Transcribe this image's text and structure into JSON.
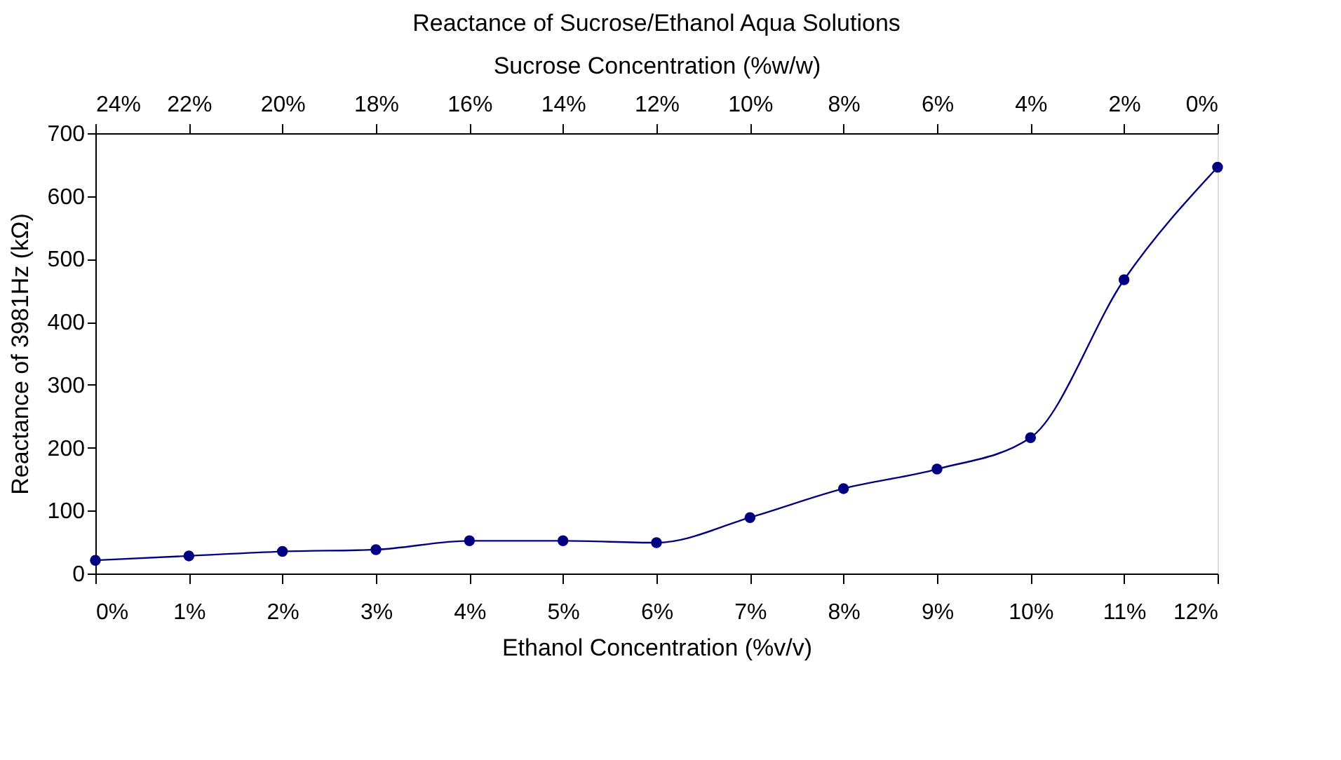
{
  "chart_data": {
    "type": "line",
    "title": "Reactance of Sucrose/Ethanol Aqua Solutions",
    "xlabel": "Ethanol Concentration (%v/v)",
    "ylabel": "Reactance of 3981Hz (kΩ)",
    "x2label": "Sucrose Concentration (%w/w)",
    "x": [
      0,
      1,
      2,
      3,
      4,
      5,
      6,
      7,
      8,
      9,
      10,
      11,
      12
    ],
    "series": [
      {
        "color": "#000080",
        "values": [
          21,
          28,
          35,
          38,
          52,
          52,
          49,
          89,
          135,
          166,
          216,
          467,
          646
        ]
      }
    ],
    "xlim": [
      0,
      12
    ],
    "xticks": [
      {
        "value": 0,
        "label": "0%"
      },
      {
        "value": 1,
        "label": "1%"
      },
      {
        "value": 2,
        "label": "2%"
      },
      {
        "value": 3,
        "label": "3%"
      },
      {
        "value": 4,
        "label": "4%"
      },
      {
        "value": 5,
        "label": "5%"
      },
      {
        "value": 6,
        "label": "6%"
      },
      {
        "value": 7,
        "label": "7%"
      },
      {
        "value": 8,
        "label": "8%"
      },
      {
        "value": 9,
        "label": "9%"
      },
      {
        "value": 10,
        "label": "10%"
      },
      {
        "value": 11,
        "label": "11%"
      },
      {
        "value": 12,
        "label": "12%"
      }
    ],
    "x2lim": [
      24,
      0
    ],
    "x2ticks": [
      {
        "value": 24,
        "label": "24%"
      },
      {
        "value": 22,
        "label": "22%"
      },
      {
        "value": 20,
        "label": "20%"
      },
      {
        "value": 18,
        "label": "18%"
      },
      {
        "value": 16,
        "label": "16%"
      },
      {
        "value": 14,
        "label": "14%"
      },
      {
        "value": 12,
        "label": "12%"
      },
      {
        "value": 10,
        "label": "10%"
      },
      {
        "value": 8,
        "label": "8%"
      },
      {
        "value": 6,
        "label": "6%"
      },
      {
        "value": 4,
        "label": "4%"
      },
      {
        "value": 2,
        "label": "2%"
      },
      {
        "value": 0,
        "label": "0%"
      }
    ],
    "ylim": [
      0,
      700
    ],
    "yticks": [
      0,
      100,
      200,
      300,
      400,
      500,
      600,
      700
    ],
    "marker": "circle",
    "line_style": "solid",
    "grid": false
  }
}
